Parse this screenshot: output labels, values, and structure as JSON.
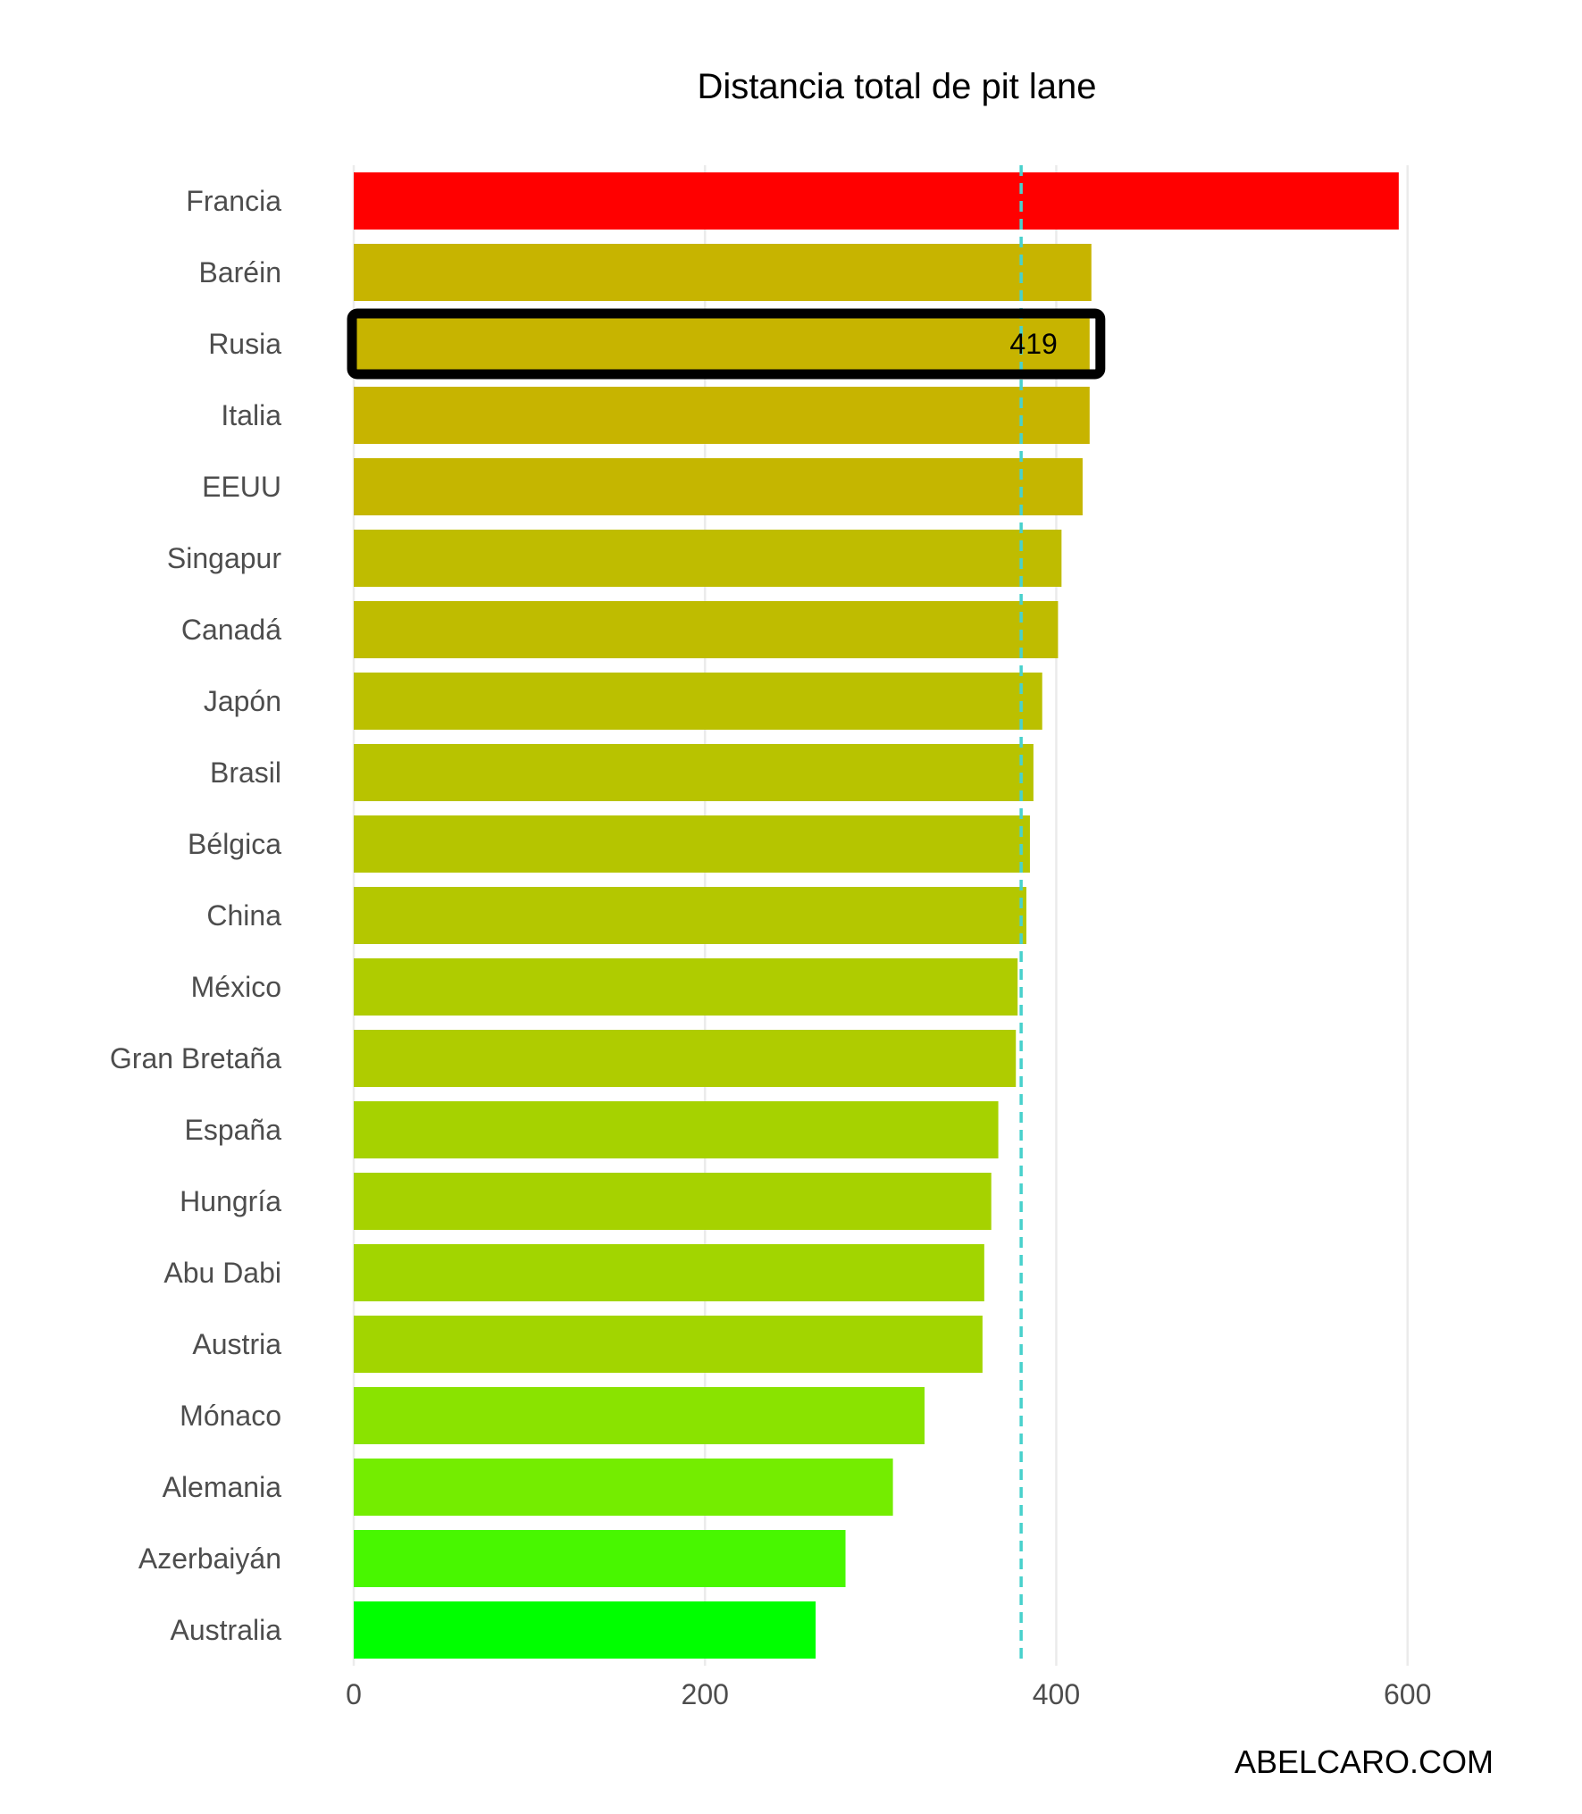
{
  "chart_data": {
    "type": "bar",
    "orientation": "horizontal",
    "title": "Distancia total de pit lane",
    "xlabel": "",
    "ylabel": "",
    "categories": [
      "Francia",
      "Baréin",
      "Rusia",
      "Italia",
      "EEUU",
      "Singapur",
      "Canadá",
      "Japón",
      "Brasil",
      "Bélgica",
      "China",
      "México",
      "Gran Bretaña",
      "España",
      "Hungría",
      "Abu Dabi",
      "Austria",
      "Mónaco",
      "Alemania",
      "Azerbaiyán",
      "Australia"
    ],
    "values": [
      595,
      420,
      419,
      419,
      415,
      403,
      401,
      392,
      387,
      385,
      383,
      378,
      377,
      367,
      363,
      359,
      358,
      325,
      307,
      280,
      263
    ],
    "bar_colors": [
      "#ff0000",
      "#c7b400",
      "#c7b400",
      "#c7b400",
      "#c5b600",
      "#bfbc00",
      "#bfbc00",
      "#bbc000",
      "#b8c300",
      "#b5c500",
      "#b4c700",
      "#afcc00",
      "#afcc00",
      "#a6d200",
      "#a6d200",
      "#a2d500",
      "#a2d500",
      "#8ae300",
      "#74ed00",
      "#48f700",
      "#00ff00"
    ],
    "xlim": [
      0,
      620
    ],
    "xticks": [
      0,
      200,
      400,
      600
    ],
    "grid": true,
    "reference_line": {
      "value": 380,
      "color": "#48d1cc",
      "style": "dashed"
    },
    "highlight": {
      "category": "Rusia",
      "label": "419"
    },
    "legend": "none"
  },
  "watermark": "ABELCARO.COM"
}
